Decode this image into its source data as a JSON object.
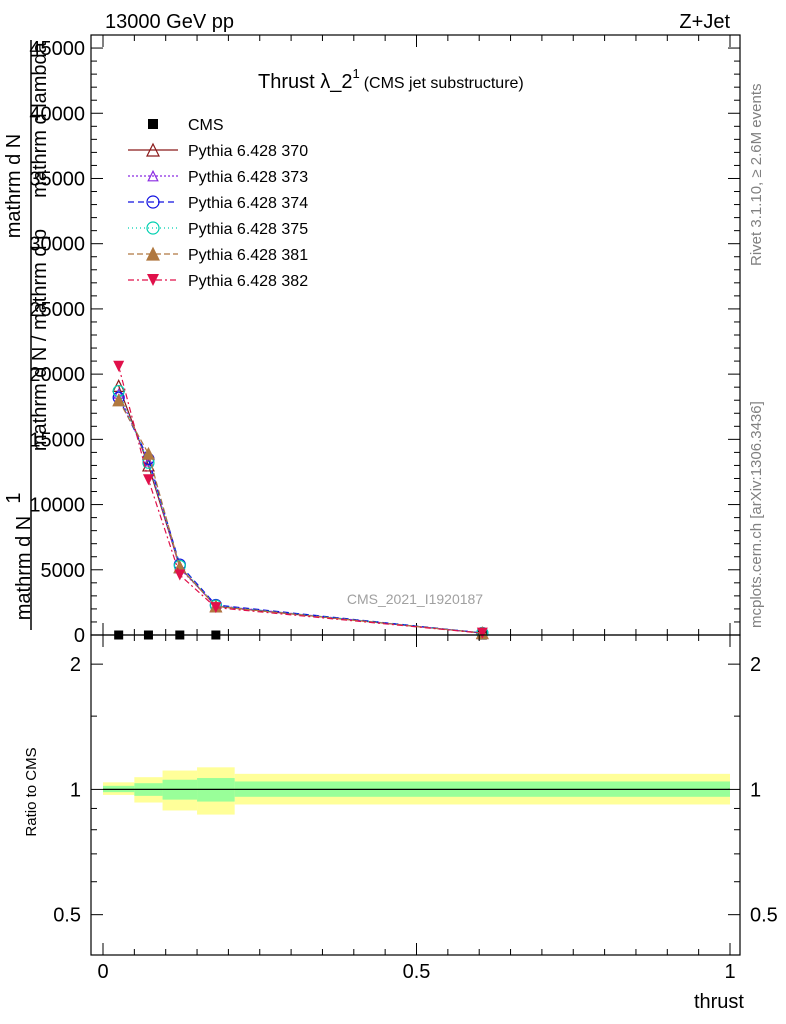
{
  "header": {
    "left": "13000 GeV pp",
    "right": "Z+Jet"
  },
  "side_text": {
    "rivet": "Rivet 3.1.10, ≥ 2.6M events",
    "mcplots": "mcplots.cern.ch [arXiv:1306.3436]"
  },
  "chart_data": [
    {
      "type": "line",
      "title": "Thrust λ_2",
      "title_sup": "1",
      "subtitle": "(CMS jet substructure)",
      "watermark": "CMS_2021_I1920187",
      "ylabel_lines": [
        "1",
        "mathrm d N",
        "mathrm d N / mathrm d p",
        "T",
        "mathrm d",
        "2",
        "mathrm d N",
        "mathrm d p",
        "mathrm d lambda"
      ],
      "xlim": [
        0,
        1
      ],
      "ylim": [
        0,
        46000
      ],
      "yticks": [
        0,
        5000,
        10000,
        15000,
        20000,
        25000,
        30000,
        35000,
        40000,
        45000
      ],
      "legend_position": "top-left",
      "bins": [
        0.0,
        0.05,
        0.095,
        0.15,
        0.21,
        1.0
      ],
      "x": [
        0.025,
        0.0725,
        0.1225,
        0.18,
        0.605
      ],
      "series": [
        {
          "name": "CMS",
          "values": [
            0,
            0,
            0,
            0,
            0
          ],
          "color": "#000000",
          "marker": "square",
          "dash": "none"
        },
        {
          "name": "Pythia 6.428 370",
          "values": [
            19100,
            13000,
            5200,
            2200,
            150
          ],
          "color": "#8b1a1a",
          "marker": "triangle-open",
          "dash": "solid"
        },
        {
          "name": "Pythia 6.428 373",
          "values": [
            18500,
            13300,
            5100,
            2250,
            150
          ],
          "color": "#8a2be2",
          "marker": "triangle-open-small",
          "dash": "2,2"
        },
        {
          "name": "Pythia 6.428 374",
          "values": [
            18200,
            13500,
            5400,
            2300,
            160
          ],
          "color": "#1010e0",
          "marker": "circle-open",
          "dash": "6,4"
        },
        {
          "name": "Pythia 6.428 375",
          "values": [
            18700,
            13200,
            5300,
            2250,
            155
          ],
          "color": "#00d0b0",
          "marker": "circle-open",
          "dash": "1,3"
        },
        {
          "name": "Pythia 6.428 381",
          "values": [
            18000,
            13900,
            5200,
            2200,
            150
          ],
          "color": "#b07840",
          "marker": "triangle-filled",
          "dash": "6,3"
        },
        {
          "name": "Pythia 6.428 382",
          "values": [
            20600,
            11900,
            4600,
            2100,
            140
          ],
          "color": "#e0104a",
          "marker": "triangle-down-filled",
          "dash": "6,3,2,3"
        }
      ]
    },
    {
      "type": "area",
      "ylabel": "Ratio to CMS",
      "xlabel": "thrust",
      "xlim": [
        0,
        1
      ],
      "ylim": [
        0.4,
        2.35
      ],
      "log_y": true,
      "xticks": [
        0,
        0.5,
        1
      ],
      "xtick_labels": [
        "0",
        "0.5",
        "1"
      ],
      "yticks": [
        0.5,
        1,
        2
      ],
      "ytick_labels": [
        "0.5",
        "1",
        "2"
      ],
      "bands": {
        "bins": [
          0.0,
          0.05,
          0.095,
          0.15,
          0.21,
          1.0
        ],
        "yellow_lo": [
          0.97,
          0.93,
          0.89,
          0.87,
          0.92
        ],
        "yellow_hi": [
          1.04,
          1.07,
          1.11,
          1.13,
          1.09
        ],
        "green_lo": [
          0.985,
          0.965,
          0.945,
          0.935,
          0.96
        ],
        "green_hi": [
          1.02,
          1.035,
          1.055,
          1.065,
          1.045
        ],
        "yellow_color": "#ffff99",
        "green_color": "#99ff99"
      },
      "reference": 1
    }
  ]
}
